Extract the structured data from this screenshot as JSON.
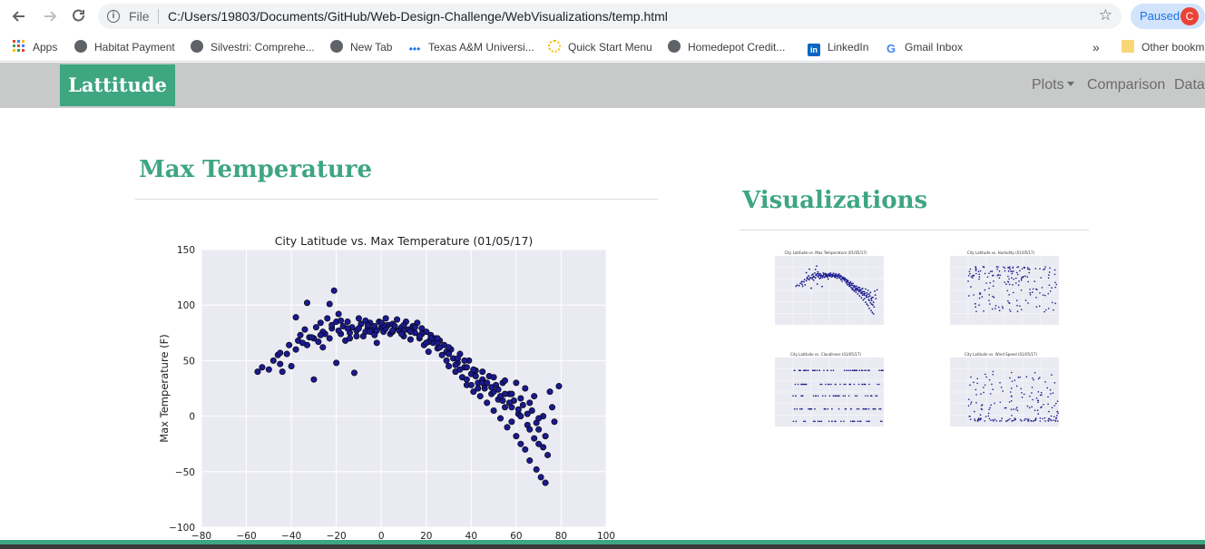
{
  "browser": {
    "back_icon": "arrow-left-icon",
    "forward_icon": "arrow-right-icon",
    "reload_icon": "reload-icon",
    "info_icon": "info-icon",
    "file_label": "File",
    "url": "C:/Users/19803/Documents/GitHub/Web-Design-Challenge/WebVisualizations/temp.html",
    "star_icon": "star-icon",
    "profile_status": "Paused",
    "avatar_letter": "C"
  },
  "bookmarks": {
    "items": [
      "Apps",
      "Habitat Payment",
      "Silvestri: Comprehe...",
      "New Tab",
      "Texas A&M Universi...",
      "Quick Start Menu",
      "Homedepot Credit...",
      "LinkedIn",
      "Gmail Inbox"
    ],
    "overflow": "»",
    "other": "Other bookm"
  },
  "nav": {
    "brand": "Lattitude",
    "links": [
      "Plots",
      "Comparison",
      "Data"
    ]
  },
  "main": {
    "heading": "Max Temperature"
  },
  "side": {
    "heading": "Visualizations",
    "thumbnails": [
      {
        "title": "City Latitude vs. Max Temperature (01/05/17)"
      },
      {
        "title": "City Latitude vs. Humidity (01/05/17)"
      },
      {
        "title": "City Latitude vs. Cloudiness (01/05/17)"
      },
      {
        "title": "City Latitude vs. Wind Speed (01/05/17)"
      }
    ]
  },
  "chart_data": {
    "type": "scatter",
    "title": "City Latitude vs. Max Temperature (01/05/17)",
    "xlabel": "",
    "ylabel": "Max Temperature (F)",
    "xlim": [
      -80,
      100
    ],
    "ylim": [
      -100,
      150
    ],
    "xticks": [
      -80,
      -60,
      -40,
      -20,
      0,
      20,
      40,
      60,
      80,
      100
    ],
    "yticks": [
      -100,
      -50,
      0,
      50,
      100,
      150
    ],
    "grid": true,
    "marker_color": "#1a1a8c",
    "background": "#eaeaf2",
    "series": [
      {
        "points": [
          [
            -55,
            40
          ],
          [
            -53,
            44
          ],
          [
            -50,
            42
          ],
          [
            -46,
            55
          ],
          [
            -45,
            57
          ],
          [
            -45,
            47
          ],
          [
            -44,
            40
          ],
          [
            -41,
            64
          ],
          [
            -40,
            45
          ],
          [
            -38,
            89
          ],
          [
            -38,
            60
          ],
          [
            -37,
            68
          ],
          [
            -36,
            73
          ],
          [
            -34,
            78
          ],
          [
            -33,
            102
          ],
          [
            -33,
            64
          ],
          [
            -32,
            71
          ],
          [
            -30,
            33
          ],
          [
            -29,
            80
          ],
          [
            -28,
            67
          ],
          [
            -27,
            84
          ],
          [
            -26,
            62
          ],
          [
            -25,
            74
          ],
          [
            -24,
            88
          ],
          [
            -23,
            101
          ],
          [
            -22,
            79
          ],
          [
            -21,
            113
          ],
          [
            -20,
            85
          ],
          [
            -20,
            48
          ],
          [
            -19,
            92
          ],
          [
            -18,
            74
          ],
          [
            -17,
            81
          ],
          [
            -16,
            68
          ],
          [
            -15,
            85
          ],
          [
            -14,
            75
          ],
          [
            -13,
            80
          ],
          [
            -12,
            39
          ],
          [
            -11,
            77
          ],
          [
            -10,
            88
          ],
          [
            -9,
            83
          ],
          [
            -8,
            72
          ],
          [
            -7,
            86
          ],
          [
            -6,
            79
          ],
          [
            -5,
            84
          ],
          [
            -4,
            78
          ],
          [
            -3,
            81
          ],
          [
            -2,
            66
          ],
          [
            -1,
            85
          ],
          [
            0,
            80
          ],
          [
            1,
            76
          ],
          [
            2,
            88
          ],
          [
            3,
            82
          ],
          [
            4,
            74
          ],
          [
            5,
            83
          ],
          [
            6,
            79
          ],
          [
            7,
            87
          ],
          [
            8,
            77
          ],
          [
            9,
            80
          ],
          [
            10,
            72
          ],
          [
            11,
            85
          ],
          [
            12,
            78
          ],
          [
            13,
            69
          ],
          [
            14,
            81
          ],
          [
            15,
            75
          ],
          [
            16,
            84
          ],
          [
            17,
            70
          ],
          [
            18,
            79
          ],
          [
            19,
            64
          ],
          [
            20,
            76
          ],
          [
            21,
            58
          ],
          [
            22,
            73
          ],
          [
            23,
            66
          ],
          [
            24,
            70
          ],
          [
            25,
            61
          ],
          [
            26,
            68
          ],
          [
            27,
            55
          ],
          [
            28,
            64
          ],
          [
            29,
            58
          ],
          [
            30,
            45
          ],
          [
            31,
            60
          ],
          [
            32,
            52
          ],
          [
            33,
            40
          ],
          [
            34,
            48
          ],
          [
            35,
            56
          ],
          [
            36,
            35
          ],
          [
            37,
            44
          ],
          [
            38,
            28
          ],
          [
            39,
            50
          ],
          [
            40,
            38
          ],
          [
            41,
            22
          ],
          [
            42,
            41
          ],
          [
            43,
            30
          ],
          [
            44,
            18
          ],
          [
            45,
            33
          ],
          [
            46,
            25
          ],
          [
            47,
            12
          ],
          [
            48,
            36
          ],
          [
            49,
            20
          ],
          [
            50,
            5
          ],
          [
            51,
            28
          ],
          [
            52,
            15
          ],
          [
            53,
            -2
          ],
          [
            54,
            30
          ],
          [
            55,
            8
          ],
          [
            56,
            -10
          ],
          [
            57,
            20
          ],
          [
            58,
            -5
          ],
          [
            59,
            14
          ],
          [
            60,
            -18
          ],
          [
            61,
            2
          ],
          [
            62,
            -25
          ],
          [
            63,
            10
          ],
          [
            64,
            -30
          ],
          [
            65,
            -8
          ],
          [
            66,
            -40
          ],
          [
            67,
            5
          ],
          [
            68,
            -20
          ],
          [
            69,
            -48
          ],
          [
            70,
            -12
          ],
          [
            71,
            -55
          ],
          [
            72,
            0
          ],
          [
            73,
            -60
          ],
          [
            74,
            -35
          ],
          [
            75,
            22
          ],
          [
            77,
            -5
          ],
          [
            79,
            27
          ],
          [
            -48,
            50
          ],
          [
            -42,
            56
          ],
          [
            -35,
            66
          ],
          [
            -30,
            70
          ],
          [
            -26,
            76
          ],
          [
            -22,
            82
          ],
          [
            -18,
            86
          ],
          [
            -14,
            70
          ],
          [
            -10,
            79
          ],
          [
            -6,
            82
          ],
          [
            -2,
            77
          ],
          [
            2,
            79
          ],
          [
            6,
            81
          ],
          [
            10,
            77
          ],
          [
            14,
            79
          ],
          [
            18,
            74
          ],
          [
            22,
            70
          ],
          [
            26,
            62
          ],
          [
            30,
            56
          ],
          [
            34,
            52
          ],
          [
            38,
            44
          ],
          [
            42,
            36
          ],
          [
            46,
            28
          ],
          [
            50,
            22
          ],
          [
            54,
            14
          ],
          [
            58,
            8
          ],
          [
            62,
            0
          ],
          [
            66,
            -12
          ],
          [
            70,
            -25
          ],
          [
            -31,
            71
          ],
          [
            -27,
            73
          ],
          [
            -23,
            70
          ],
          [
            -19,
            77
          ],
          [
            -15,
            79
          ],
          [
            -11,
            72
          ],
          [
            -7,
            76
          ],
          [
            -3,
            73
          ],
          [
            1,
            82
          ],
          [
            5,
            76
          ],
          [
            9,
            74
          ],
          [
            13,
            76
          ],
          [
            17,
            72
          ],
          [
            21,
            67
          ],
          [
            25,
            66
          ],
          [
            29,
            50
          ],
          [
            33,
            46
          ],
          [
            37,
            50
          ],
          [
            41,
            42
          ],
          [
            45,
            30
          ],
          [
            49,
            26
          ],
          [
            53,
            18
          ],
          [
            57,
            12
          ],
          [
            61,
            6
          ],
          [
            65,
            2
          ],
          [
            69,
            -6
          ],
          [
            73,
            -18
          ],
          [
            38,
            33
          ],
          [
            43,
            25
          ],
          [
            47,
            30
          ],
          [
            52,
            24
          ],
          [
            55,
            32
          ],
          [
            58,
            20
          ],
          [
            62,
            16
          ],
          [
            66,
            12
          ],
          [
            70,
            -2
          ],
          [
            60,
            30
          ],
          [
            64,
            25
          ],
          [
            68,
            18
          ],
          [
            72,
            -28
          ],
          [
            76,
            8
          ],
          [
            55,
            20
          ],
          [
            50,
            35
          ],
          [
            45,
            40
          ],
          [
            40,
            28
          ],
          [
            35,
            42
          ],
          [
            30,
            62
          ],
          [
            25,
            70
          ],
          [
            20,
            66
          ],
          [
            15,
            80
          ],
          [
            10,
            82
          ],
          [
            5,
            77
          ],
          [
            0,
            84
          ],
          [
            -5,
            76
          ]
        ]
      }
    ]
  }
}
